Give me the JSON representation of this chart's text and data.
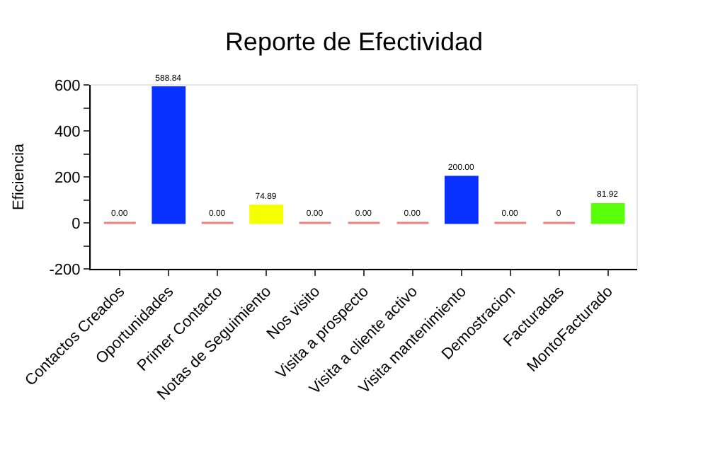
{
  "chart_data": {
    "type": "bar",
    "title": "Reporte de Efectividad",
    "ylabel": "Eficiencia",
    "categories": [
      "Contactos Creados",
      "Oportunidades",
      "Primer Contacto",
      "Notas de Seguimiento",
      "Nos visito",
      "Visita a prospecto",
      "Visita a cliente activo",
      "Visita mantenimiento",
      "Demostracion",
      "Facturadas",
      "MontoFacturado"
    ],
    "values": [
      0,
      588.84,
      0,
      74.89,
      0,
      0,
      0,
      200,
      0,
      0,
      81.92
    ],
    "value_labels": [
      "0.00",
      "588.84",
      "0.00",
      "74.89",
      "0.00",
      "0.00",
      "0.00",
      "200.00",
      "0.00",
      "0",
      "81.92"
    ],
    "colors": [
      "#f08080",
      "#0a30ff",
      "#f08080",
      "#f5ff00",
      "#f08080",
      "#f08080",
      "#f08080",
      "#0a30ff",
      "#f08080",
      "#f08080",
      "#5aff0a"
    ],
    "ylim": [
      -200,
      600
    ],
    "yticks": [
      -200,
      {
        "value": -100,
        "label": null
      },
      0,
      {
        "value": 100,
        "label": null
      },
      200,
      {
        "value": 300,
        "label": null
      },
      400,
      {
        "value": 500,
        "label": null
      },
      600
    ],
    "grid": false,
    "legend": false
  }
}
